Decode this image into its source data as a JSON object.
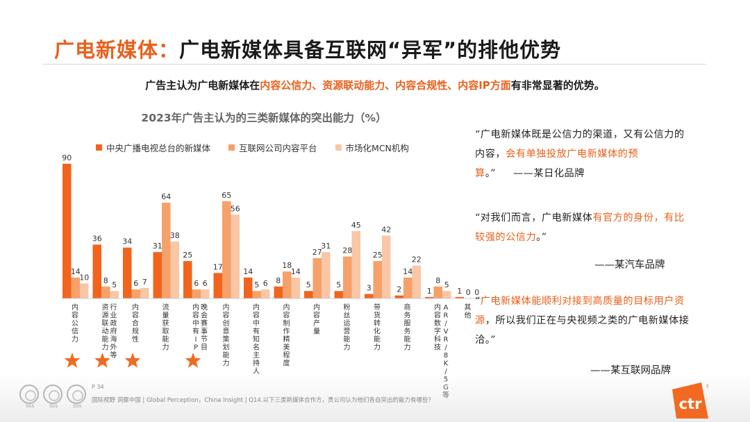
{
  "header": {
    "title_accent": "广电新媒体：",
    "title_rest": "广电新媒体具备互联网“异军”的排他优势"
  },
  "subtitle": {
    "part1": "广告主认为广电新媒体在",
    "accent": "内容公信力、资源联动能力、内容合规性、内容IP方面",
    "part2": "有非常显著的优势。"
  },
  "colors": {
    "accent": "#e8601c",
    "series": [
      "#f2641d",
      "#f6a06a",
      "#f9c6a6"
    ],
    "star": "#f26a21"
  },
  "chart_data": {
    "type": "bar",
    "title": "2023年广告主认为的三类新媒体的突出能力（%）",
    "categories": [
      "内容公信力",
      "资源联动能力（行业、政府、海外等）",
      "内容合规性",
      "流量获取能力",
      "内容中有IP（晚会、赛事、节目）",
      "内容创意策划能力",
      "内容中有知名主持人",
      "内容制作精美程度",
      "内容产量",
      "粉丝运营能力",
      "带货转化能力",
      "商务服务能力",
      "内容数字科技（AR/VR/8K/5G等）",
      "其他"
    ],
    "category_label_lines": [
      [
        "内容公信力"
      ],
      [
        "资源联动能力",
        "（行业、政府、海外等）"
      ],
      [
        "内容合规性"
      ],
      [
        "流量获取能力"
      ],
      [
        "内容中有IP",
        "（晚会、赛事、节目）"
      ],
      [
        "内容创意策划能力"
      ],
      [
        "内容中有知名主持人"
      ],
      [
        "内容制作精美程度"
      ],
      [
        "内容产量"
      ],
      [
        "粉丝运营能力"
      ],
      [
        "带货转化能力"
      ],
      [
        "商务服务能力"
      ],
      [
        "内容数字科技",
        "（AR/VR/8K/5G等）"
      ],
      [
        "其他"
      ]
    ],
    "series": [
      {
        "name": "中央广播电视总台的新媒体",
        "values": [
          90,
          36,
          34,
          31,
          25,
          17,
          14,
          8,
          5,
          5,
          3,
          2,
          1,
          1
        ]
      },
      {
        "name": "互联网公司内容平台",
        "values": [
          14,
          8,
          6,
          64,
          6,
          65,
          5,
          18,
          27,
          28,
          25,
          14,
          8,
          0
        ]
      },
      {
        "name": "市场化MCN机构",
        "values": [
          10,
          5,
          7,
          38,
          6,
          56,
          6,
          14,
          31,
          45,
          42,
          22,
          5,
          0
        ]
      }
    ],
    "ylim": [
      0,
      90
    ],
    "legend_position": "top",
    "starred_categories": [
      0,
      1,
      2,
      4
    ]
  },
  "quotes": [
    {
      "open": "“广电新媒体既是公信力的渠道，又有公信力的内容，",
      "accent": "会有单独投放广电新媒体的预算",
      "close": "。”",
      "source": "——某日化品牌"
    },
    {
      "open": "“对我们而言，广电新媒体",
      "accent": "有官方的身份，有比较强的公信力",
      "close": "。”",
      "source": "——某汽车品牌"
    },
    {
      "open": "“",
      "accent": "广电新媒体能顺利对接到高质量的目标用户资源",
      "close": "，所以我们正在与央视频之类的广电新媒体接洽。”",
      "source": "——某互联网品牌"
    }
  ],
  "footer": {
    "page": "P 34",
    "note": "国际视野  洞察中国 | Global Perception，China Insight | Q14.以下三类新媒体合作方，贵公司认为他们各自突出的能力有哪些？",
    "seal_label": "SGS",
    "logo_text": "ctr",
    "logo_mark": "®"
  }
}
